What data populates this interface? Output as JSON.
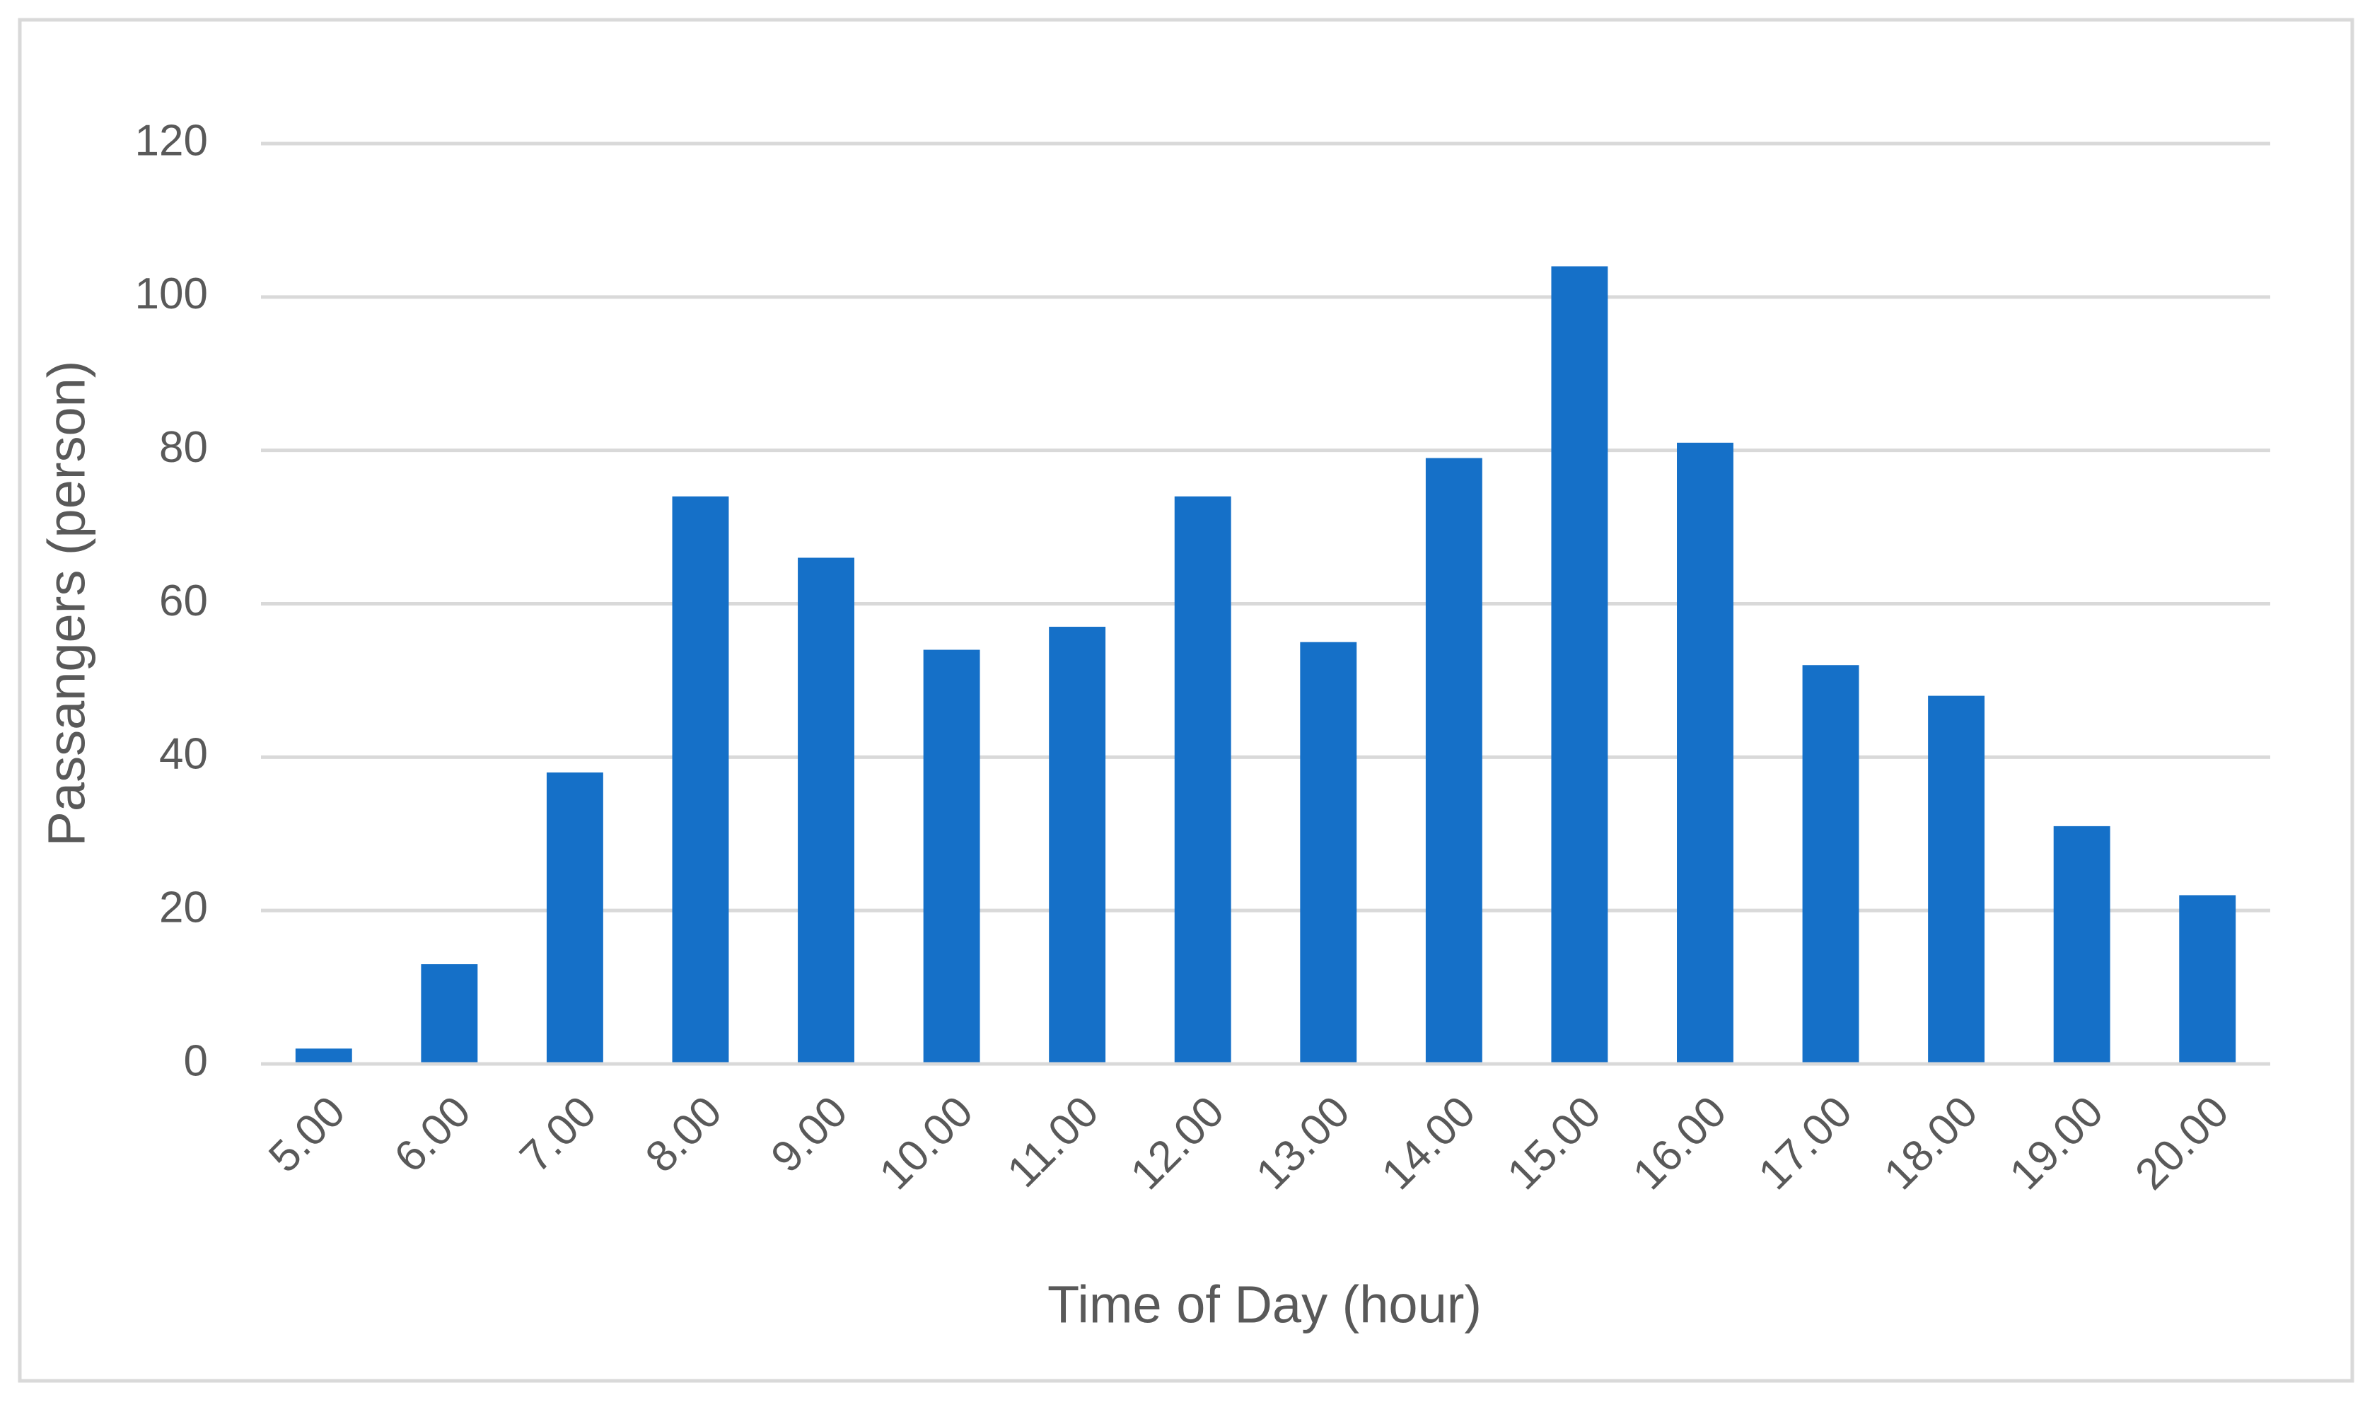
{
  "chart_data": {
    "type": "bar",
    "x_label": "Time of Day (hour)",
    "y_label": "Passangers (person)",
    "categories": [
      "5.00",
      "6.00",
      "7.00",
      "8.00",
      "9.00",
      "10.00",
      "11.00",
      "12.00",
      "13.00",
      "14.00",
      "15.00",
      "16.00",
      "17.00",
      "18.00",
      "19.00",
      "20.00"
    ],
    "values": [
      2,
      13,
      38,
      74,
      66,
      54,
      57,
      74,
      55,
      79,
      104,
      81,
      52,
      48,
      31,
      22
    ],
    "color": "#1570c8",
    "ylim": [
      0,
      120
    ],
    "yticks": [
      0,
      20,
      40,
      60,
      80,
      100,
      120
    ],
    "grid": true
  }
}
